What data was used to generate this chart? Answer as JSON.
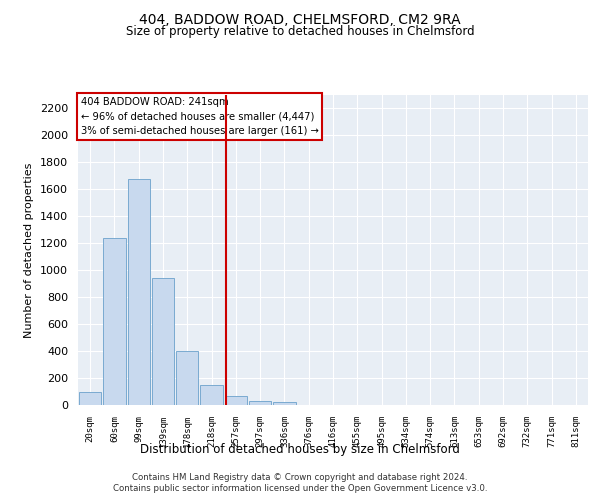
{
  "title1": "404, BADDOW ROAD, CHELMSFORD, CM2 9RA",
  "title2": "Size of property relative to detached houses in Chelmsford",
  "xlabel": "Distribution of detached houses by size in Chelmsford",
  "ylabel": "Number of detached properties",
  "bar_labels": [
    "20sqm",
    "60sqm",
    "99sqm",
    "139sqm",
    "178sqm",
    "218sqm",
    "257sqm",
    "297sqm",
    "336sqm",
    "376sqm",
    "416sqm",
    "455sqm",
    "495sqm",
    "534sqm",
    "574sqm",
    "613sqm",
    "653sqm",
    "692sqm",
    "732sqm",
    "771sqm",
    "811sqm"
  ],
  "bar_heights": [
    100,
    1240,
    1680,
    940,
    400,
    150,
    70,
    30,
    20,
    0,
    0,
    0,
    0,
    0,
    0,
    0,
    0,
    0,
    0,
    0,
    0
  ],
  "bar_color": "#c8d9ee",
  "bar_edge_color": "#7aaad0",
  "ylim": [
    0,
    2300
  ],
  "yticks": [
    0,
    200,
    400,
    600,
    800,
    1000,
    1200,
    1400,
    1600,
    1800,
    2000,
    2200
  ],
  "annotation_title": "404 BADDOW ROAD: 241sqm",
  "annotation_line1": "← 96% of detached houses are smaller (4,447)",
  "annotation_line2": "3% of semi-detached houses are larger (161) →",
  "annotation_box_color": "#ffffff",
  "annotation_box_edge": "#cc0000",
  "property_line_color": "#cc0000",
  "background_color": "#e8eef5",
  "grid_color": "#ffffff",
  "footer1": "Contains HM Land Registry data © Crown copyright and database right 2024.",
  "footer2": "Contains public sector information licensed under the Open Government Licence v3.0."
}
